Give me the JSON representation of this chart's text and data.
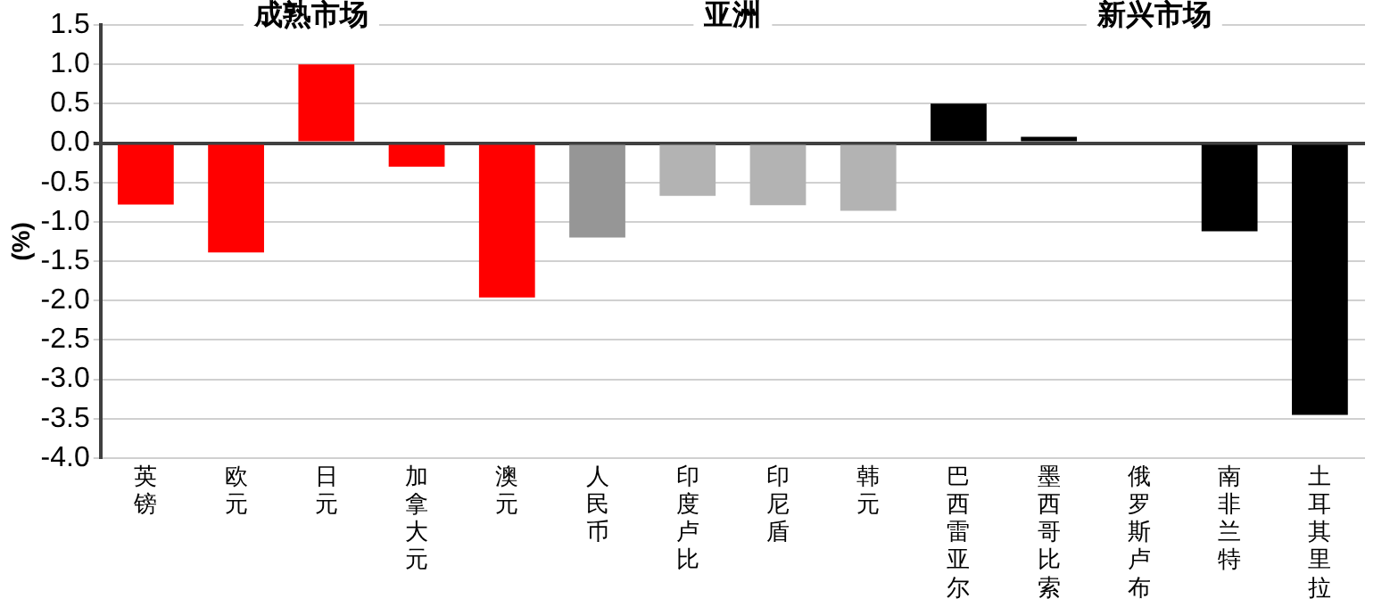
{
  "chart_data": {
    "type": "bar",
    "ylabel": "(%)",
    "categories": [
      "英镑",
      "欧元",
      "日元",
      "加拿大元",
      "澳元",
      "人民币",
      "印度卢比",
      "印尼盾",
      "韩元",
      "巴西雷亚尔",
      "墨西哥比索",
      "俄罗斯卢布",
      "南非兰特",
      "土耳其里拉"
    ],
    "values": [
      -0.78,
      -1.39,
      1.0,
      -0.3,
      -1.96,
      -1.2,
      -0.67,
      -0.79,
      -0.86,
      0.5,
      0.08,
      0,
      -1.12,
      -3.45
    ],
    "colors": [
      "#ff0000",
      "#ff0000",
      "#ff0000",
      "#ff0000",
      "#ff0000",
      "#969696",
      "#b3b3b3",
      "#b3b3b3",
      "#b3b3b3",
      "#000000",
      "#000000",
      "#000000",
      "#000000",
      "#000000"
    ],
    "ylim": [
      -4,
      1.5
    ],
    "yticks": [
      {
        "value": -4,
        "label": "-4.0"
      },
      {
        "value": -3.5,
        "label": "-3.5"
      },
      {
        "value": -3,
        "label": "-3.0"
      },
      {
        "value": -2.5,
        "label": "-2.5"
      },
      {
        "value": -2,
        "label": "-2.0"
      },
      {
        "value": -1.5,
        "label": "-1.5"
      },
      {
        "value": -1,
        "label": "-1.0"
      },
      {
        "value": -0.5,
        "label": "-0.5"
      },
      {
        "value": 0,
        "label": "0.0"
      },
      {
        "value": 0.5,
        "label": "0.5"
      },
      {
        "value": 1,
        "label": "1.0"
      },
      {
        "value": 1.5,
        "label": "1.5"
      }
    ],
    "grid": "y",
    "annotations": [
      "成熟市场",
      "亚洲",
      "新兴市场"
    ]
  }
}
